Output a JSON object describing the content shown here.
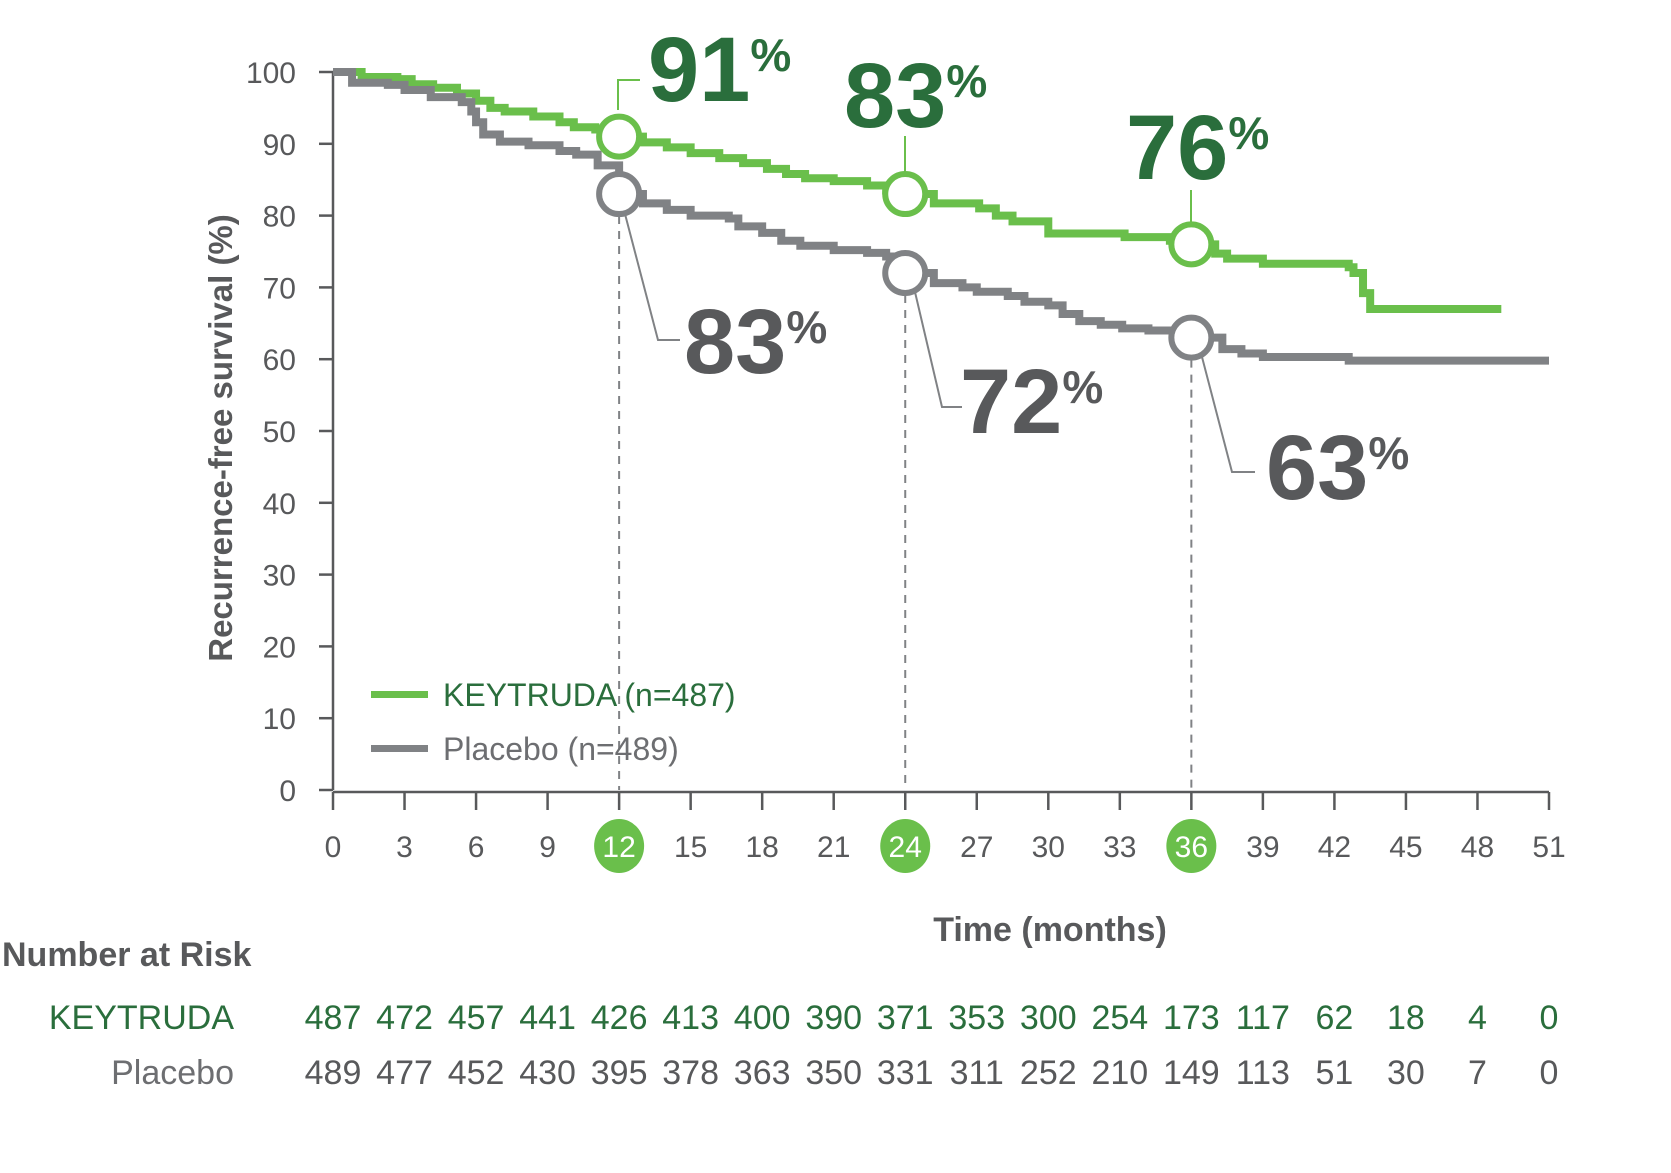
{
  "chart_data": {
    "type": "line",
    "subtype": "kaplan-meier step",
    "title": "",
    "xlabel": "Time (months)",
    "ylabel": "Recurrence-free survival (%)",
    "xlim": [
      0,
      51
    ],
    "ylim": [
      0,
      100
    ],
    "x_ticks": [
      0,
      3,
      6,
      9,
      12,
      15,
      18,
      21,
      24,
      27,
      30,
      33,
      36,
      39,
      42,
      45,
      48,
      51
    ],
    "y_ticks": [
      0,
      10,
      20,
      30,
      40,
      50,
      60,
      70,
      80,
      90,
      100
    ],
    "highlighted_x_ticks": [
      12,
      24,
      36
    ],
    "grid": false,
    "legend_position": "lower-left inside plot",
    "series": [
      {
        "name": "KEYTRUDA (n=487)",
        "color": "#6abf4b",
        "points": [
          [
            0,
            100
          ],
          [
            0.6,
            100
          ],
          [
            1.2,
            99.3
          ],
          [
            2.7,
            99
          ],
          [
            3.3,
            98.3
          ],
          [
            4.2,
            97.8
          ],
          [
            5.2,
            97
          ],
          [
            6,
            96
          ],
          [
            6.6,
            95
          ],
          [
            7.2,
            94.5
          ],
          [
            8.4,
            93.8
          ],
          [
            9.5,
            93
          ],
          [
            10.1,
            92.3
          ],
          [
            11,
            92
          ],
          [
            12,
            91
          ],
          [
            13,
            90.2
          ],
          [
            14,
            89.5
          ],
          [
            15,
            88.7
          ],
          [
            16.2,
            88
          ],
          [
            17.2,
            87.3
          ],
          [
            18.2,
            86.5
          ],
          [
            19,
            85.8
          ],
          [
            19.8,
            85.2
          ],
          [
            21,
            84.8
          ],
          [
            22.4,
            84.2
          ],
          [
            23.2,
            83.5
          ],
          [
            24,
            83
          ],
          [
            25.2,
            81.7
          ],
          [
            27.1,
            81
          ],
          [
            27.8,
            80
          ],
          [
            28.5,
            79.2
          ],
          [
            30,
            77.5
          ],
          [
            32.5,
            77.5
          ],
          [
            33.2,
            77
          ],
          [
            35.1,
            76.5
          ],
          [
            36,
            76
          ],
          [
            37,
            74.7
          ],
          [
            37.5,
            74
          ],
          [
            39,
            73.3
          ],
          [
            42.6,
            72.8
          ],
          [
            42.8,
            72
          ],
          [
            43.2,
            69.2
          ],
          [
            43.5,
            67
          ],
          [
            49,
            67
          ]
        ]
      },
      {
        "name": "Placebo (n=489)",
        "color": "#808285",
        "points": [
          [
            0,
            100
          ],
          [
            0.8,
            98.5
          ],
          [
            2.3,
            98.2
          ],
          [
            3,
            97.5
          ],
          [
            4.1,
            96.5
          ],
          [
            5.4,
            95.8
          ],
          [
            5.8,
            94.5
          ],
          [
            6,
            93
          ],
          [
            6.3,
            91.3
          ],
          [
            7,
            90.3
          ],
          [
            8.2,
            89.8
          ],
          [
            9.5,
            89
          ],
          [
            10.2,
            88.5
          ],
          [
            11.1,
            87
          ],
          [
            12,
            83
          ],
          [
            13,
            81.7
          ],
          [
            14,
            80.8
          ],
          [
            15,
            80
          ],
          [
            16.6,
            79.6
          ],
          [
            17,
            78.5
          ],
          [
            18,
            77.6
          ],
          [
            18.8,
            76.5
          ],
          [
            19.6,
            75.8
          ],
          [
            21,
            75.2
          ],
          [
            22.4,
            74.8
          ],
          [
            23.2,
            74.3
          ],
          [
            24,
            72
          ],
          [
            25.2,
            70.6
          ],
          [
            26.4,
            70
          ],
          [
            27,
            69.4
          ],
          [
            28.3,
            68.8
          ],
          [
            29,
            68
          ],
          [
            30,
            67.5
          ],
          [
            30.6,
            66.3
          ],
          [
            31.3,
            65.3
          ],
          [
            32.2,
            64.8
          ],
          [
            33.1,
            64.3
          ],
          [
            34.2,
            64
          ],
          [
            36,
            63
          ],
          [
            37.3,
            61.4
          ],
          [
            38.1,
            60.8
          ],
          [
            39,
            60.3
          ],
          [
            42.6,
            59.8
          ],
          [
            51,
            59.8
          ]
        ]
      }
    ],
    "annotations": [
      {
        "series": "KEYTRUDA",
        "x": 12,
        "y": 91,
        "label": "91%"
      },
      {
        "series": "KEYTRUDA",
        "x": 24,
        "y": 83,
        "label": "83%"
      },
      {
        "series": "KEYTRUDA",
        "x": 36,
        "y": 76,
        "label": "76%"
      },
      {
        "series": "Placebo",
        "x": 12,
        "y": 83,
        "label": "83%"
      },
      {
        "series": "Placebo",
        "x": 24,
        "y": 72,
        "label": "72%"
      },
      {
        "series": "Placebo",
        "x": 36,
        "y": 63,
        "label": "63%"
      }
    ],
    "number_at_risk": {
      "title": "Number at Risk",
      "times": [
        0,
        3,
        6,
        9,
        12,
        15,
        18,
        21,
        24,
        27,
        30,
        33,
        36,
        39,
        42,
        45,
        48,
        51
      ],
      "rows": [
        {
          "label": "KEYTRUDA",
          "values": [
            487,
            472,
            457,
            441,
            426,
            413,
            400,
            390,
            371,
            353,
            300,
            254,
            173,
            117,
            62,
            18,
            4,
            0
          ]
        },
        {
          "label": "Placebo",
          "values": [
            489,
            477,
            452,
            430,
            395,
            378,
            363,
            350,
            331,
            311,
            252,
            210,
            149,
            113,
            51,
            30,
            7,
            0
          ]
        }
      ]
    }
  },
  "legend": {
    "keytruda": "KEYTRUDA (n=487)",
    "placebo": "Placebo (n=489)"
  },
  "axes": {
    "x_title": "Time (months)",
    "y_title": "Recurrence-free survival (%)"
  },
  "callouts": {
    "k12": {
      "num": "91",
      "pct": "%"
    },
    "k24": {
      "num": "83",
      "pct": "%"
    },
    "k36": {
      "num": "76",
      "pct": "%"
    },
    "p12": {
      "num": "83",
      "pct": "%"
    },
    "p24": {
      "num": "72",
      "pct": "%"
    },
    "p36": {
      "num": "63",
      "pct": "%"
    }
  },
  "risk_table": {
    "title": "Number at Risk",
    "keytruda_label": "KEYTRUDA",
    "placebo_label": "Placebo"
  },
  "colors": {
    "keytruda_line": "#6abf4b",
    "keytruda_text": "#2a6e3c",
    "placebo_line": "#808285",
    "placebo_text": "#58595b",
    "axis": "#58595b"
  }
}
